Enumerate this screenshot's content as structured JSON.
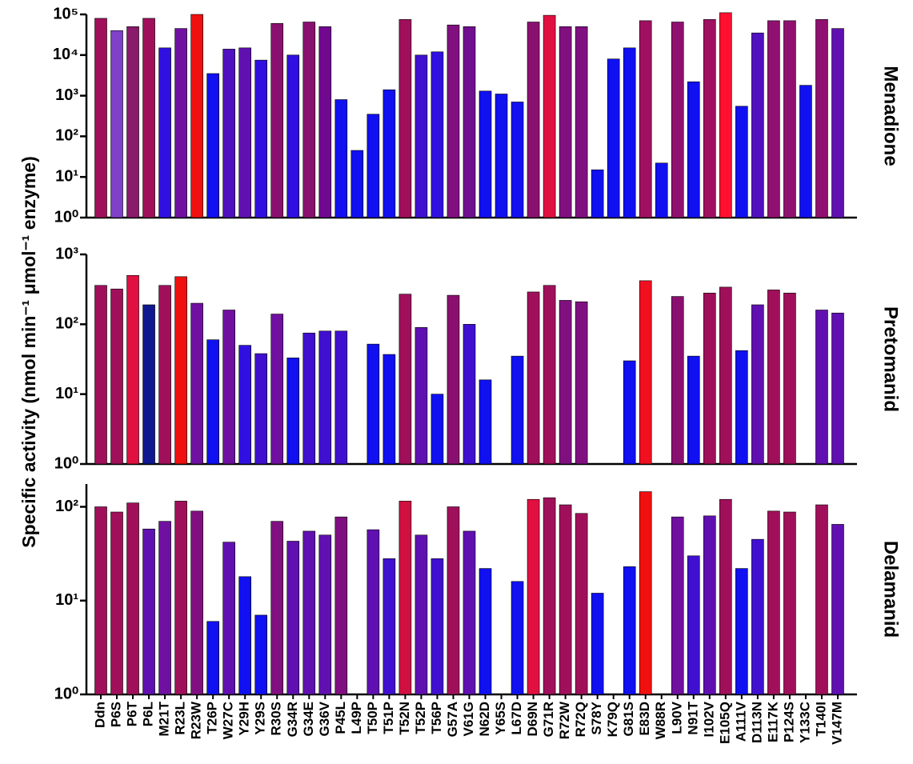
{
  "chart_data": [
    {
      "type": "bar",
      "title": "Menadione",
      "log_y": true,
      "ylim": [
        1,
        100000
      ],
      "yticks": [
        {
          "value": 1,
          "label": "10⁰"
        },
        {
          "value": 10,
          "label": "10¹"
        },
        {
          "value": 100,
          "label": "10²"
        },
        {
          "value": 1000,
          "label": "10³"
        },
        {
          "value": 10000,
          "label": "10⁴"
        },
        {
          "value": 100000,
          "label": "10⁵"
        }
      ],
      "values": [
        80000,
        40000,
        50000,
        80000,
        15000,
        45000,
        100000,
        3500,
        14000,
        15000,
        7500,
        60000,
        10000,
        65000,
        50000,
        800,
        45,
        350,
        1400,
        75000,
        10000,
        12000,
        55000,
        50000,
        1300,
        1100,
        700,
        65000,
        95000,
        50000,
        50000,
        15,
        8000,
        15000,
        70000,
        22,
        65000,
        2200,
        75000,
        110000,
        550,
        35000,
        70000,
        70000,
        1800,
        75000,
        45000
      ],
      "colors": [
        "#a0105a",
        "#8040c8",
        "#8a1a6a",
        "#a0105a",
        "#3010e0",
        "#7010a0",
        "#f01010",
        "#1010f0",
        "#5010c0",
        "#6010b0",
        "#3010e0",
        "#8a1070",
        "#3010e0",
        "#8a1070",
        "#700890",
        "#1010f0",
        "#1010f0",
        "#1010f0",
        "#1010f0",
        "#a0105a",
        "#4010d0",
        "#3010e0",
        "#801080",
        "#701090",
        "#1010f0",
        "#1010f0",
        "#1010f0",
        "#8a1070",
        "#e01040",
        "#801080",
        "#801080",
        "#1010f0",
        "#1010f0",
        "#1010f0",
        "#a01060",
        "#1010f0",
        "#901070",
        "#1010f0",
        "#a01060",
        "#ff1030",
        "#1010f0",
        "#5010c0",
        "#901070",
        "#901070",
        "#1010f0",
        "#901070",
        "#6010b0"
      ]
    },
    {
      "type": "bar",
      "title": "Pretomanid",
      "ylabel": "Specific activity (nmol min⁻¹ μmol⁻¹ enzyme)",
      "log_y": true,
      "ylim": [
        1,
        1000
      ],
      "yticks": [
        {
          "value": 1,
          "label": "10⁰"
        },
        {
          "value": 10,
          "label": "10¹"
        },
        {
          "value": 100,
          "label": "10²"
        },
        {
          "value": 1000,
          "label": "10³"
        }
      ],
      "values": [
        360,
        320,
        500,
        190,
        360,
        480,
        200,
        60,
        160,
        50,
        38,
        140,
        33,
        75,
        80,
        80,
        null,
        52,
        37,
        270,
        90,
        10,
        260,
        100,
        16,
        null,
        35,
        290,
        360,
        220,
        210,
        null,
        null,
        30,
        420,
        null,
        250,
        35,
        280,
        340,
        42,
        190,
        310,
        280,
        null,
        160,
        145
      ],
      "colors": [
        "#a0105a",
        "#a0105a",
        "#e01040",
        "#101890",
        "#a0105a",
        "#f01010",
        "#7010a0",
        "#1010f0",
        "#7010a0",
        "#3010e0",
        "#4010d0",
        "#7010a0",
        "#1010f0",
        "#4010d0",
        "#4010d0",
        "#4010d0",
        null,
        "#1010f0",
        "#1010f0",
        "#a0105a",
        "#6010b0",
        "#1010f0",
        "#8a1070",
        "#4010d0",
        "#1010f0",
        null,
        "#1010f0",
        "#a0105a",
        "#a0105a",
        "#801080",
        "#801080",
        null,
        null,
        "#1010f0",
        "#f01020",
        null,
        "#8a1070",
        "#1010f0",
        "#a0105a",
        "#a0105a",
        "#1010f0",
        "#6010b0",
        "#a0105a",
        "#a0105a",
        null,
        "#6010b0",
        "#6010b0"
      ]
    },
    {
      "type": "bar",
      "title": "Delamanid",
      "log_y": true,
      "ylim": [
        1,
        175
      ],
      "yticks": [
        {
          "value": 1,
          "label": "10⁰"
        },
        {
          "value": 10,
          "label": "10¹"
        },
        {
          "value": 100,
          "label": "10²"
        }
      ],
      "categories": [
        "Ddn",
        "P6S",
        "P6T",
        "P6L",
        "M21T",
        "R23L",
        "R23W",
        "T26P",
        "W27C",
        "Y29H",
        "Y29S",
        "R30S",
        "G34R",
        "G34E",
        "G36V",
        "P45L",
        "L49P",
        "T50P",
        "T51P",
        "T52N",
        "T52P",
        "T56P",
        "G57A",
        "V61G",
        "N62D",
        "Y65S",
        "L67D",
        "D69N",
        "G71R",
        "R72W",
        "R72Q",
        "S78Y",
        "K79Q",
        "G81S",
        "E83D",
        "W88R",
        "L90V",
        "N91T",
        "I102V",
        "E105Q",
        "A111V",
        "D113N",
        "E117K",
        "P124S",
        "Y133C",
        "T140I",
        "V147M"
      ],
      "values": [
        100,
        88,
        110,
        58,
        70,
        115,
        90,
        6,
        42,
        18,
        7,
        70,
        43,
        55,
        50,
        78,
        null,
        57,
        28,
        115,
        50,
        28,
        100,
        55,
        22,
        null,
        16,
        120,
        125,
        105,
        85,
        12,
        null,
        23,
        145,
        null,
        78,
        30,
        80,
        120,
        22,
        45,
        90,
        88,
        null,
        105,
        65
      ],
      "colors": [
        "#a0105a",
        "#a0105a",
        "#a0105a",
        "#6010b0",
        "#7010a0",
        "#a0105a",
        "#801080",
        "#1010f0",
        "#6010b0",
        "#1010f0",
        "#1010f0",
        "#801080",
        "#6010b0",
        "#6010b0",
        "#6010b0",
        "#801080",
        null,
        "#6010b0",
        "#4010d0",
        "#d01040",
        "#6010b0",
        "#4010d0",
        "#a0105a",
        "#6010b0",
        "#1010f0",
        null,
        "#1010f0",
        "#e01040",
        "#a0105a",
        "#a0105a",
        "#a0105a",
        "#1010f0",
        null,
        "#1010f0",
        "#f01010",
        null,
        "#7010a0",
        "#4010d0",
        "#6010b0",
        "#a0105a",
        "#1010f0",
        "#4010d0",
        "#a0105a",
        "#a0105a",
        null,
        "#a0105a",
        "#6010b0"
      ]
    }
  ]
}
